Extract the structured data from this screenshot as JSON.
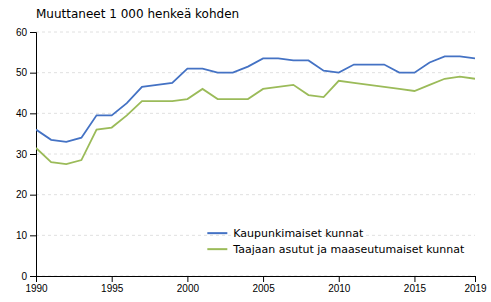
{
  "chart_data": {
    "type": "line",
    "title": "Muuttaneet 1 000 henkeä kohden",
    "x": [
      1990,
      1991,
      1992,
      1993,
      1994,
      1995,
      1996,
      1997,
      1998,
      1999,
      2000,
      2001,
      2002,
      2003,
      2004,
      2005,
      2006,
      2007,
      2008,
      2009,
      2010,
      2011,
      2012,
      2013,
      2014,
      2015,
      2016,
      2017,
      2018,
      2019
    ],
    "series": [
      {
        "name": "Kaupunkimaiset kunnat",
        "color": "#4472C4",
        "values": [
          36,
          33.5,
          33,
          34,
          39.5,
          39.5,
          42.5,
          46.5,
          47,
          47.5,
          51,
          51,
          50,
          50,
          51.5,
          53.5,
          53.5,
          53,
          53,
          50.5,
          50,
          52,
          52,
          52,
          50,
          50,
          52.5,
          54,
          54,
          53.5
        ]
      },
      {
        "name": "Taajaan asutut ja maaseutumaiset kunnat",
        "color": "#9BBB59",
        "values": [
          31.5,
          28,
          27.5,
          28.5,
          36,
          36.5,
          39.5,
          43,
          43,
          43,
          43.5,
          46,
          43.5,
          43.5,
          43.5,
          46,
          46.5,
          47,
          44.5,
          44,
          48,
          47.5,
          47,
          46.5,
          46,
          45.5,
          47,
          48.5,
          49,
          48.5
        ]
      }
    ],
    "xlim": [
      1990,
      2019
    ],
    "xticks": [
      1990,
      1995,
      2000,
      2005,
      2010,
      2015,
      2019
    ],
    "ylim": [
      0,
      60
    ],
    "yticks": [
      0,
      10,
      20,
      30,
      40,
      50,
      60
    ],
    "grid": true,
    "legend": "lower right"
  }
}
